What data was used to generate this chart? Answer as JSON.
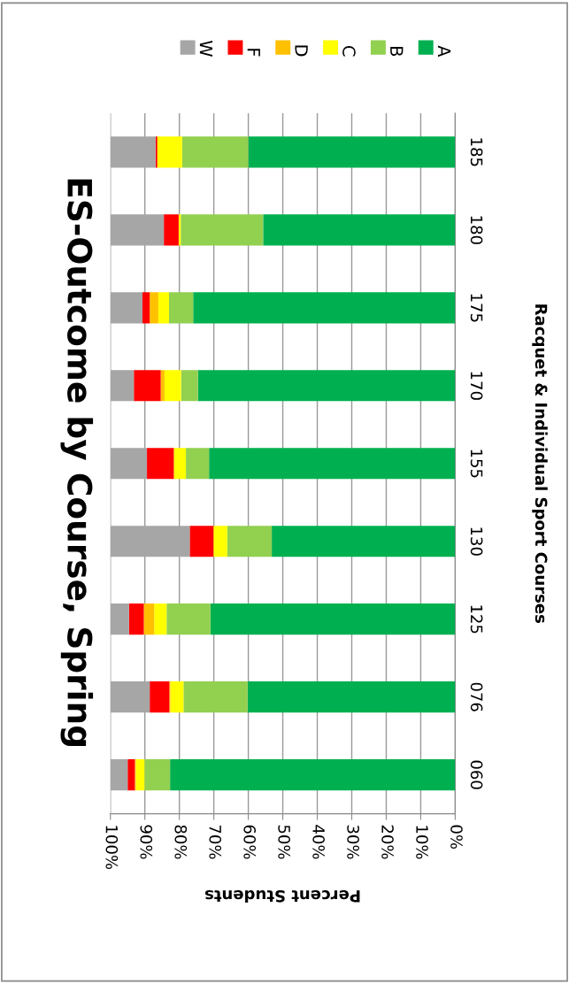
{
  "chart_data": {
    "type": "bar",
    "orientation": "horizontal",
    "stacked": true,
    "title": "ES-Outcome by Course, Spring",
    "xlabel": "Percent Students",
    "ylabel": "Racquet & Individual Sport Courses",
    "categories": [
      "185",
      "180",
      "175",
      "170",
      "155",
      "130",
      "125",
      "076",
      "060"
    ],
    "series": [
      {
        "name": "A",
        "color": "#00b050",
        "values": [
          60.0,
          55.7,
          76.0,
          74.6,
          71.4,
          53.2,
          71.0,
          60.2,
          82.7
        ]
      },
      {
        "name": "B",
        "color": "#92d050",
        "values": [
          19.2,
          23.9,
          7.0,
          4.9,
          6.7,
          12.9,
          12.7,
          18.6,
          7.4
        ]
      },
      {
        "name": "C",
        "color": "#ffff00",
        "values": [
          7.2,
          0.6,
          3.1,
          4.8,
          3.5,
          4.0,
          3.6,
          3.8,
          2.5
        ]
      },
      {
        "name": "D",
        "color": "#ffc000",
        "values": [
          0,
          0,
          2.5,
          1.1,
          0,
          0,
          3.0,
          0.3,
          0.3
        ]
      },
      {
        "name": "F",
        "color": "#ff0000",
        "values": [
          0.5,
          4.3,
          2.1,
          7.8,
          7.8,
          6.9,
          4.3,
          5.7,
          2.1
        ]
      },
      {
        "name": "W",
        "color": "#a6a6a6",
        "values": [
          13.1,
          15.5,
          9.3,
          6.8,
          10.6,
          23.0,
          5.4,
          11.4,
          5.0
        ]
      }
    ],
    "xlim": [
      100,
      0
    ],
    "xticks": [
      {
        "value": 100,
        "label": "100%"
      },
      {
        "value": 90,
        "label": "90%"
      },
      {
        "value": 80,
        "label": "80%"
      },
      {
        "value": 70,
        "label": "70%"
      },
      {
        "value": 60,
        "label": "60%"
      },
      {
        "value": 50,
        "label": "50%"
      },
      {
        "value": 40,
        "label": "40%"
      },
      {
        "value": 30,
        "label": "30%"
      },
      {
        "value": 20,
        "label": "20%"
      },
      {
        "value": 10,
        "label": "10%"
      },
      {
        "value": 0,
        "label": "0%"
      }
    ],
    "grid": "x",
    "legend": "top"
  }
}
